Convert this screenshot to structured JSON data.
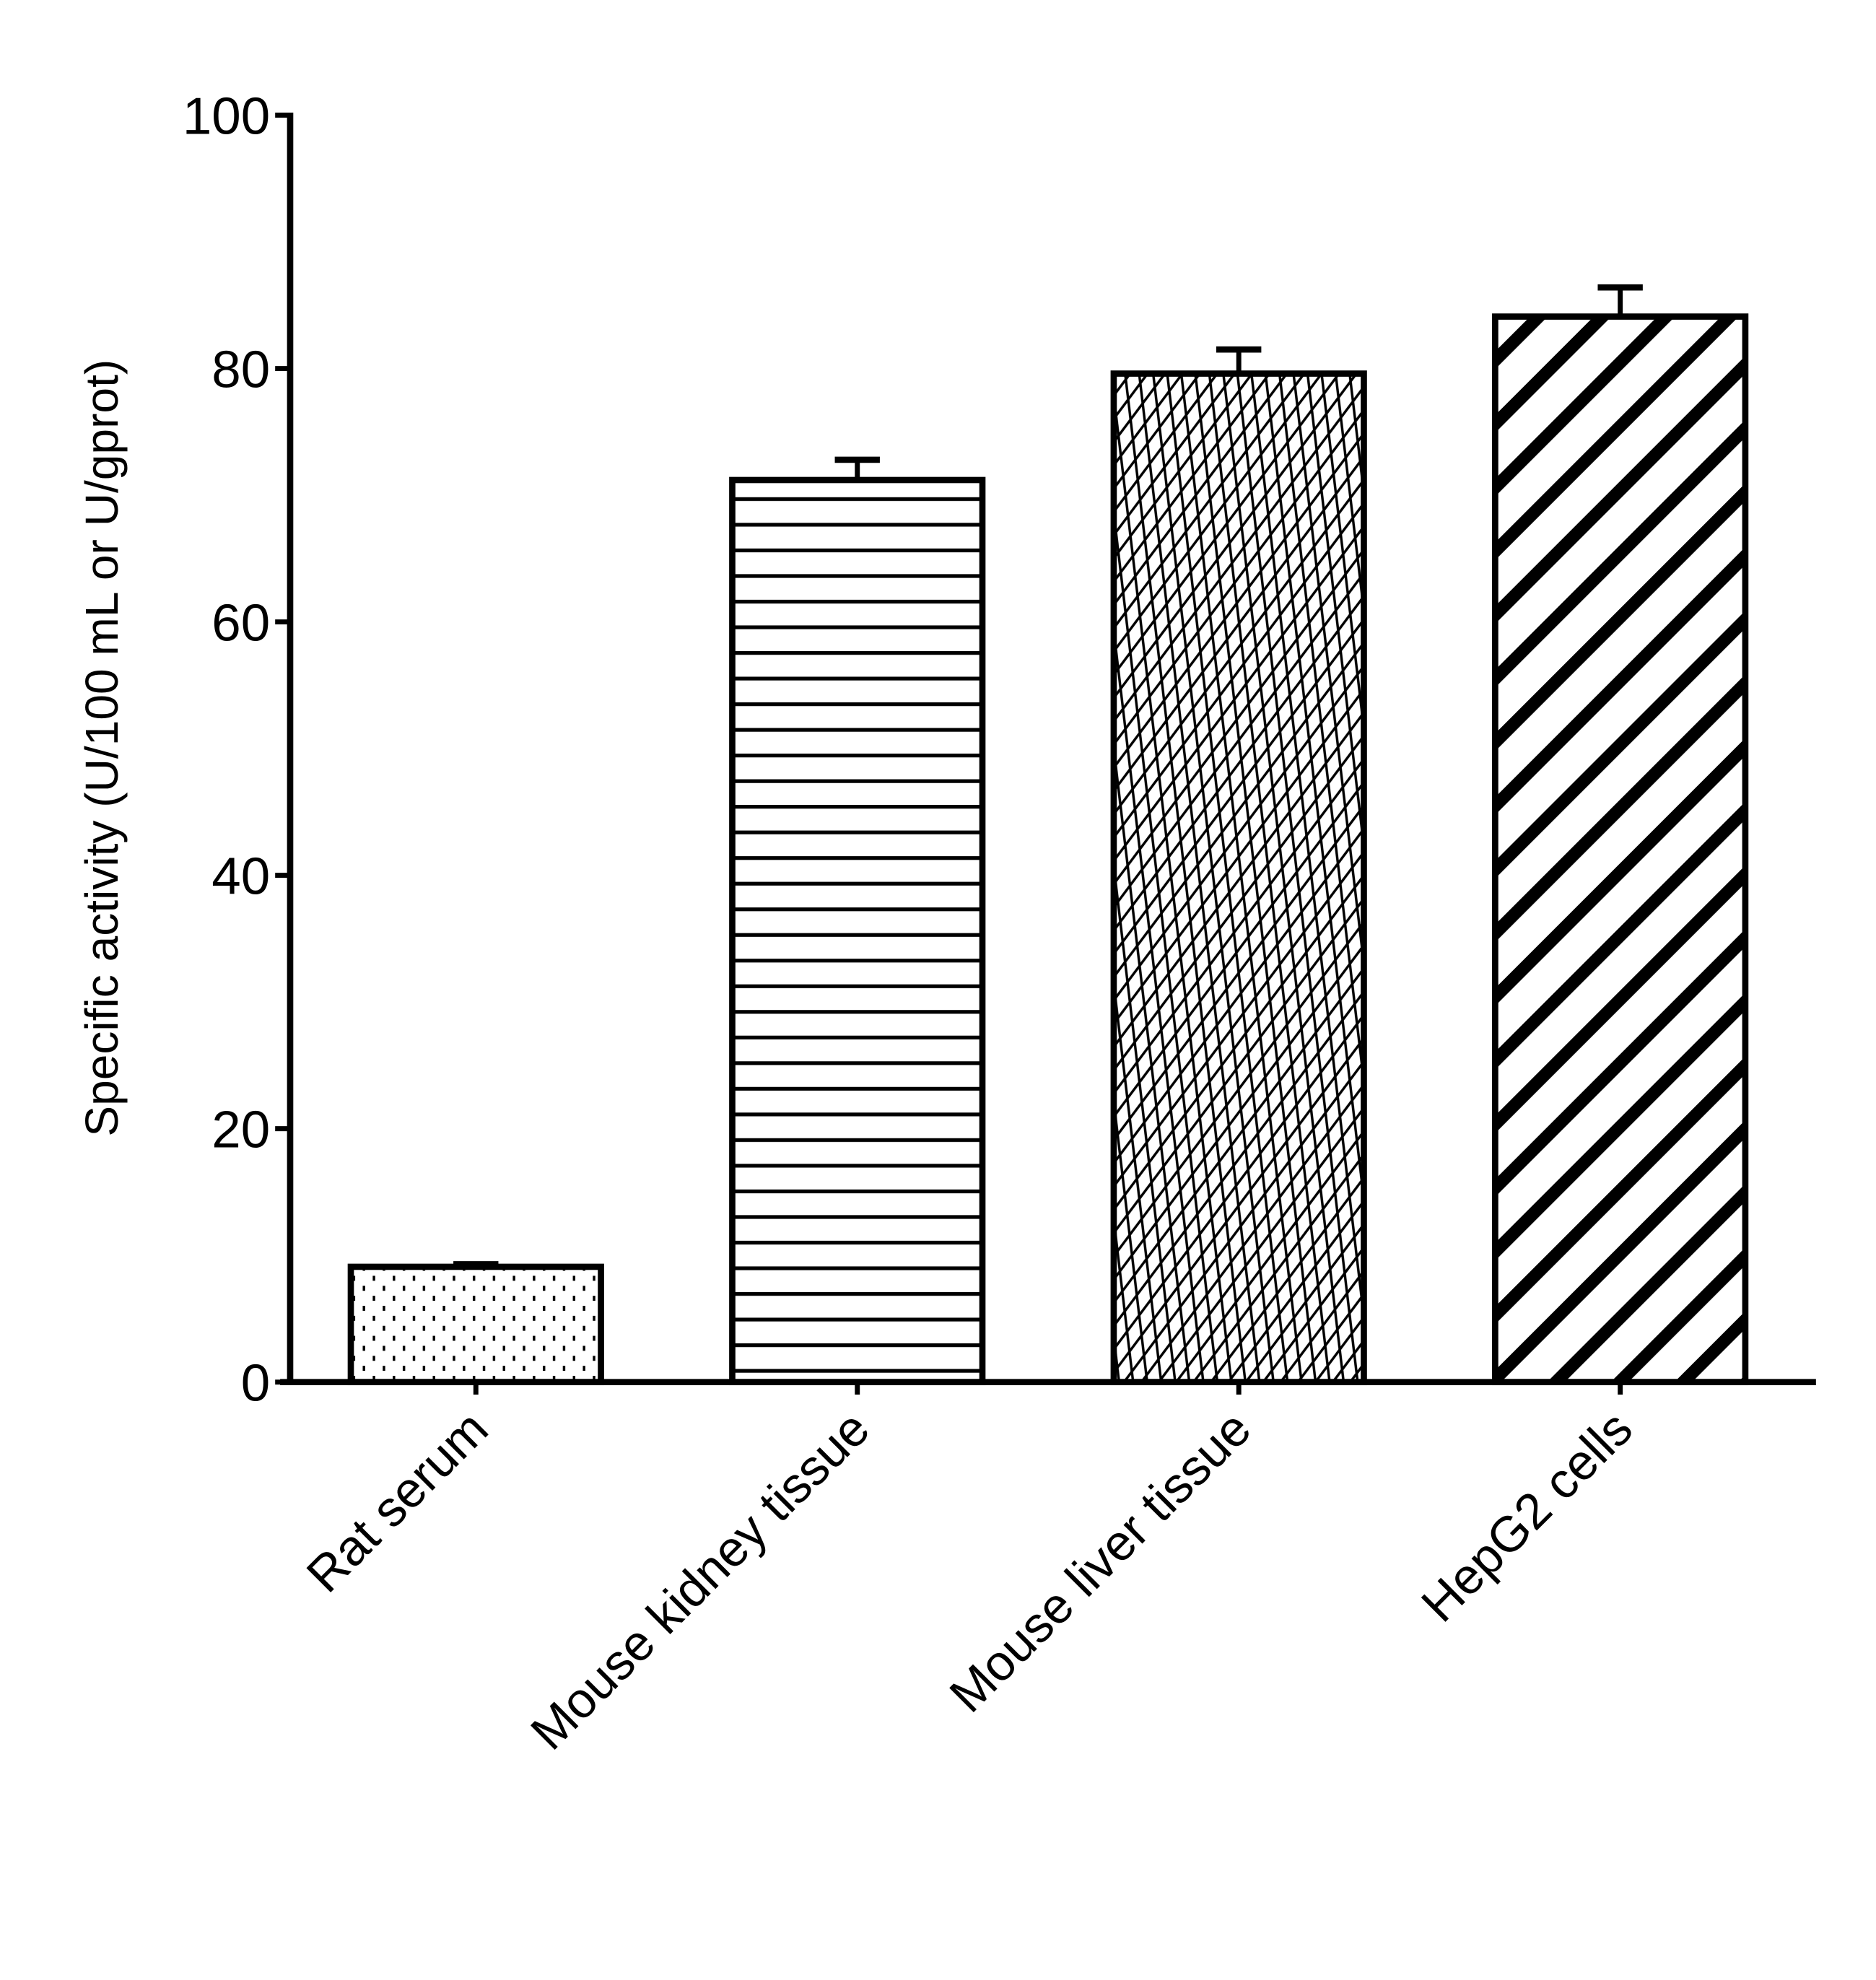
{
  "chart_data": {
    "type": "bar",
    "title": "",
    "xlabel": "",
    "ylabel": "Specific activity (U/100 mL or U/gprot)",
    "categories": [
      "Rat serum",
      "Mouse kidney tissue",
      "Mouse liver tissue",
      "HepG2 cells"
    ],
    "values": [
      9.1,
      71.2,
      79.6,
      84.1
    ],
    "errors": [
      0.2,
      1.6,
      1.9,
      2.3
    ],
    "patterns": [
      "dots",
      "horizontal-lines",
      "crosshatch",
      "diagonal-stripes"
    ],
    "ylim": [
      0,
      100
    ],
    "yticks": [
      0,
      20,
      40,
      60,
      80,
      100
    ],
    "grid": false,
    "legend": "none",
    "colors": {
      "stroke": "#000000",
      "fill": "#ffffff"
    }
  }
}
